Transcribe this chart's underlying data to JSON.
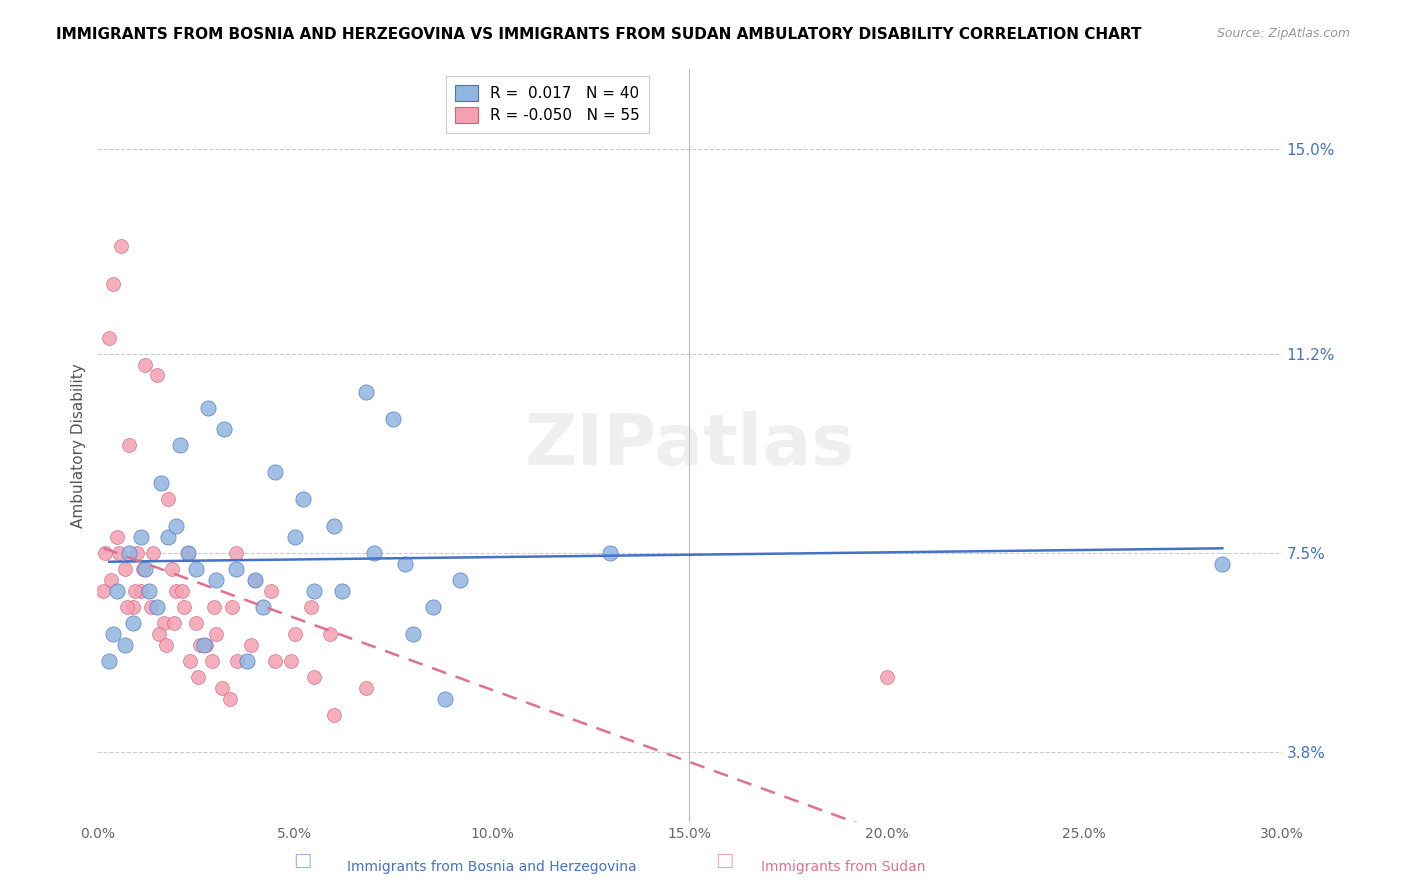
{
  "title": "IMMIGRANTS FROM BOSNIA AND HERZEGOVINA VS IMMIGRANTS FROM SUDAN AMBULATORY DISABILITY CORRELATION CHART",
  "source": "Source: ZipAtlas.com",
  "ylabel": "Ambulatory Disability",
  "xlim": [
    0.0,
    30.0
  ],
  "ylim": [
    2.5,
    16.5
  ],
  "yticks": [
    3.8,
    7.5,
    11.2,
    15.0
  ],
  "xticks": [
    0.0,
    5.0,
    10.0,
    15.0,
    20.0,
    25.0,
    30.0
  ],
  "R_bosnia": 0.017,
  "N_bosnia": 40,
  "R_sudan": -0.05,
  "N_sudan": 55,
  "color_bosnia": "#92b4e0",
  "color_sudan": "#f4a0b0",
  "trendline_color_bosnia": "#4472c4",
  "trendline_color_sudan": "#e07090",
  "watermark": "ZIPatlas",
  "bosnia_x": [
    0.5,
    1.2,
    0.8,
    1.5,
    2.1,
    1.8,
    2.5,
    3.2,
    2.8,
    4.5,
    5.2,
    4.0,
    6.8,
    7.5,
    6.2,
    8.5,
    9.2,
    8.0,
    0.3,
    0.9,
    1.1,
    1.6,
    2.0,
    2.3,
    3.0,
    3.5,
    4.2,
    5.0,
    6.0,
    7.0,
    0.4,
    0.7,
    1.3,
    2.7,
    3.8,
    5.5,
    7.8,
    8.8,
    13.0,
    28.5
  ],
  "bosnia_y": [
    6.8,
    7.2,
    7.5,
    6.5,
    9.5,
    7.8,
    7.2,
    9.8,
    10.2,
    9.0,
    8.5,
    7.0,
    10.5,
    10.0,
    6.8,
    6.5,
    7.0,
    6.0,
    5.5,
    6.2,
    7.8,
    8.8,
    8.0,
    7.5,
    7.0,
    7.2,
    6.5,
    7.8,
    8.0,
    7.5,
    6.0,
    5.8,
    6.8,
    5.8,
    5.5,
    6.8,
    7.3,
    4.8,
    7.5,
    7.3
  ],
  "sudan_x": [
    0.2,
    0.4,
    0.3,
    0.6,
    0.5,
    0.8,
    0.7,
    1.0,
    0.9,
    1.2,
    1.1,
    1.5,
    1.4,
    1.8,
    1.7,
    2.0,
    1.9,
    2.3,
    2.2,
    2.6,
    2.5,
    3.0,
    2.9,
    3.5,
    3.4,
    4.0,
    3.9,
    4.5,
    4.4,
    5.0,
    4.9,
    5.5,
    5.4,
    6.0,
    5.9,
    0.15,
    0.35,
    0.55,
    0.75,
    0.95,
    1.15,
    1.35,
    1.55,
    1.75,
    1.95,
    2.15,
    2.35,
    2.55,
    2.75,
    2.95,
    3.15,
    3.35,
    3.55,
    6.8,
    20.0
  ],
  "sudan_y": [
    7.5,
    12.5,
    11.5,
    13.2,
    7.8,
    9.5,
    7.2,
    7.5,
    6.5,
    11.0,
    6.8,
    10.8,
    7.5,
    8.5,
    6.2,
    6.8,
    7.2,
    7.5,
    6.5,
    5.8,
    6.2,
    6.0,
    5.5,
    7.5,
    6.5,
    7.0,
    5.8,
    5.5,
    6.8,
    6.0,
    5.5,
    5.2,
    6.5,
    4.5,
    6.0,
    6.8,
    7.0,
    7.5,
    6.5,
    6.8,
    7.2,
    6.5,
    6.0,
    5.8,
    6.2,
    6.8,
    5.5,
    5.2,
    5.8,
    6.5,
    5.0,
    4.8,
    5.5,
    5.0,
    5.2
  ]
}
